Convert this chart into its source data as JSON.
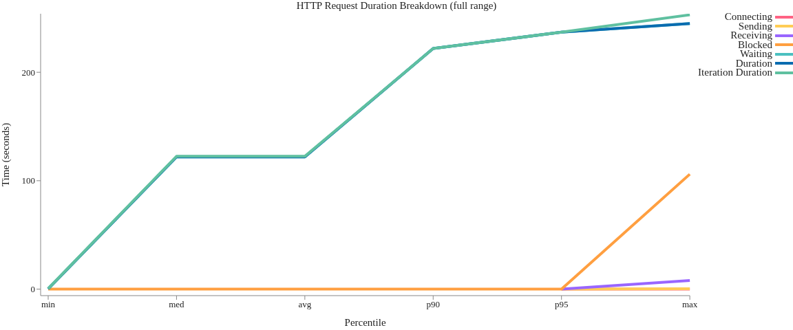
{
  "chart_data": {
    "type": "line",
    "title": "HTTP Request Duration Breakdown (full range)",
    "xlabel": "Percentile",
    "ylabel": "Time (seconds)",
    "categories": [
      "min",
      "med",
      "avg",
      "p90",
      "p95",
      "max"
    ],
    "series": [
      {
        "name": "Connecting",
        "color": "#ff6384",
        "values": [
          null,
          null,
          null,
          null,
          0,
          0
        ]
      },
      {
        "name": "Sending",
        "color": "#ffcd56",
        "values": [
          null,
          null,
          null,
          null,
          0,
          0.3
        ]
      },
      {
        "name": "Receiving",
        "color": "#9966ff",
        "values": [
          null,
          null,
          null,
          null,
          0,
          8
        ]
      },
      {
        "name": "Blocked",
        "color": "#ff9f40",
        "values": [
          0,
          0,
          0,
          0,
          0,
          106
        ]
      },
      {
        "name": "Waiting",
        "color": "#4bc0c0",
        "values": [
          0.3,
          122,
          122,
          222,
          237,
          245
        ]
      },
      {
        "name": "Duration",
        "color": "#0a6cb0",
        "values": [
          0.3,
          122,
          122,
          222,
          237,
          245
        ]
      },
      {
        "name": "Iteration Duration",
        "color": "#5fc0a0",
        "values": [
          0.5,
          122.5,
          122.5,
          222,
          237,
          253
        ]
      }
    ],
    "ylim": [
      -6,
      254
    ],
    "yticks": [
      0,
      100,
      200
    ],
    "grid": false,
    "legend": "top right",
    "marker": "none",
    "line_style": "solid"
  }
}
